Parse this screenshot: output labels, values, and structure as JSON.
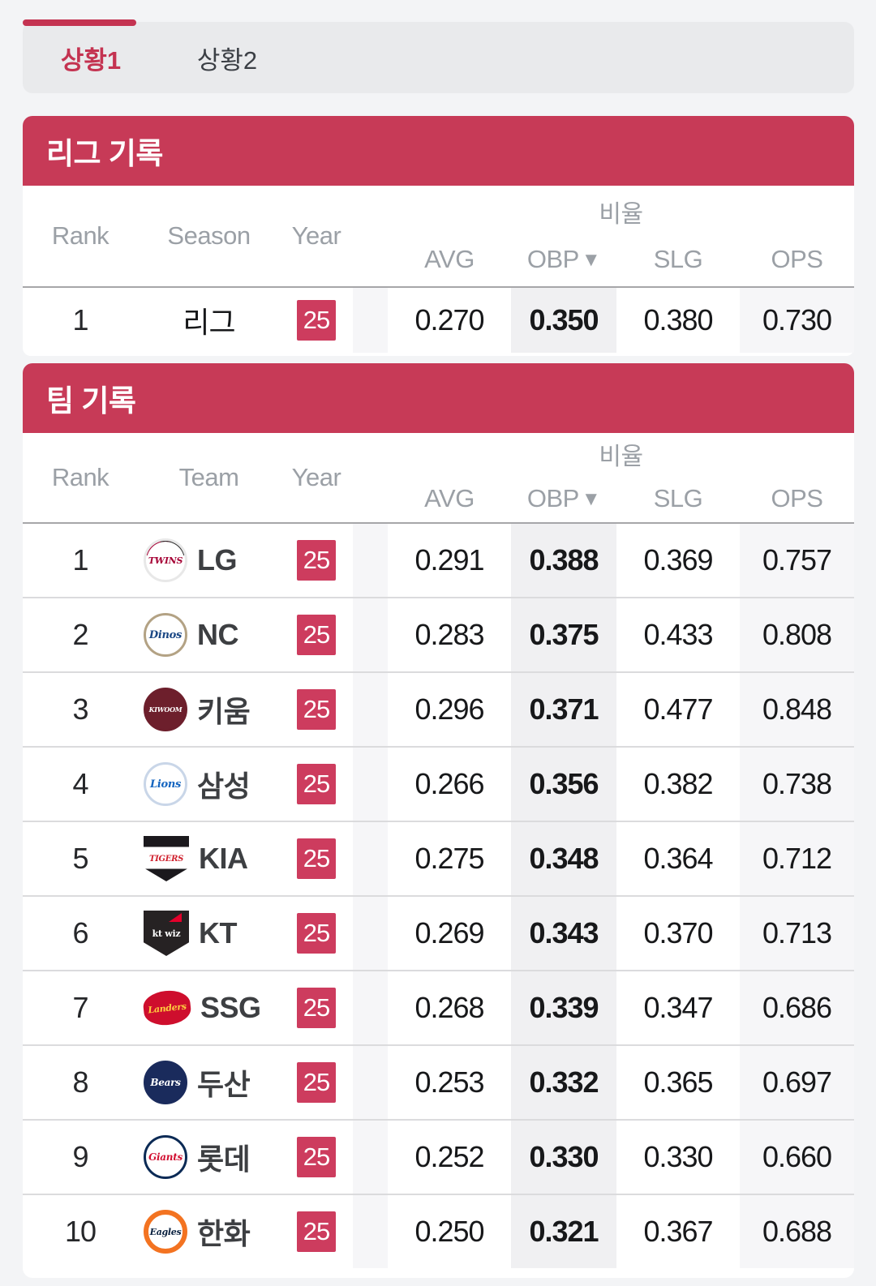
{
  "colors": {
    "accent": "#c73a57",
    "active_tab": "#c43351",
    "year_badge": "#cd3c5e",
    "sorted_column_bg": "#f0f0f2",
    "alt_column_bg": "#f6f6f8"
  },
  "tabs": [
    {
      "label": "상황1",
      "active": true
    },
    {
      "label": "상황2",
      "active": false
    }
  ],
  "league_section": {
    "title": "리그 기록",
    "columns": {
      "rank": "Rank",
      "entity": "Season",
      "year": "Year",
      "group": "비율",
      "stats": [
        "AVG",
        "OBP",
        "SLG",
        "OPS"
      ],
      "sorted_stat": "OBP",
      "sort_indicator": "▼"
    },
    "rows": [
      {
        "rank": "1",
        "name": "리그",
        "year": "25",
        "stats": [
          "0.270",
          "0.350",
          "0.380",
          "0.730"
        ]
      }
    ]
  },
  "team_section": {
    "title": "팀 기록",
    "columns": {
      "rank": "Rank",
      "entity": "Team",
      "year": "Year",
      "group": "비율",
      "stats": [
        "AVG",
        "OBP",
        "SLG",
        "OPS"
      ],
      "sorted_stat": "OBP",
      "sort_indicator": "▼"
    },
    "rows": [
      {
        "rank": "1",
        "name": "LG",
        "year": "25",
        "logo": {
          "class": "lg",
          "label": "TWINS"
        },
        "stats": [
          "0.291",
          "0.388",
          "0.369",
          "0.757"
        ]
      },
      {
        "rank": "2",
        "name": "NC",
        "year": "25",
        "logo": {
          "class": "nc",
          "label": "Dinos"
        },
        "stats": [
          "0.283",
          "0.375",
          "0.433",
          "0.808"
        ]
      },
      {
        "rank": "3",
        "name": "키움",
        "year": "25",
        "logo": {
          "class": "kiwoom",
          "label": "KIWOOM"
        },
        "stats": [
          "0.296",
          "0.371",
          "0.477",
          "0.848"
        ]
      },
      {
        "rank": "4",
        "name": "삼성",
        "year": "25",
        "logo": {
          "class": "samsung",
          "label": "Lions"
        },
        "stats": [
          "0.266",
          "0.356",
          "0.382",
          "0.738"
        ]
      },
      {
        "rank": "5",
        "name": "KIA",
        "year": "25",
        "logo": {
          "class": "kia",
          "label": "TIGERS"
        },
        "stats": [
          "0.275",
          "0.348",
          "0.364",
          "0.712"
        ]
      },
      {
        "rank": "6",
        "name": "KT",
        "year": "25",
        "logo": {
          "class": "kt",
          "label": "kt wiz"
        },
        "stats": [
          "0.269",
          "0.343",
          "0.370",
          "0.713"
        ]
      },
      {
        "rank": "7",
        "name": "SSG",
        "year": "25",
        "logo": {
          "class": "ssg",
          "label": "Landers"
        },
        "stats": [
          "0.268",
          "0.339",
          "0.347",
          "0.686"
        ]
      },
      {
        "rank": "8",
        "name": "두산",
        "year": "25",
        "logo": {
          "class": "doosan",
          "label": "Bears"
        },
        "stats": [
          "0.253",
          "0.332",
          "0.365",
          "0.697"
        ]
      },
      {
        "rank": "9",
        "name": "롯데",
        "year": "25",
        "logo": {
          "class": "lotte",
          "label": "Giants"
        },
        "stats": [
          "0.252",
          "0.330",
          "0.330",
          "0.660"
        ]
      },
      {
        "rank": "10",
        "name": "한화",
        "year": "25",
        "logo": {
          "class": "hanwha",
          "label": "Eagles"
        },
        "stats": [
          "0.250",
          "0.321",
          "0.367",
          "0.688"
        ]
      }
    ]
  }
}
